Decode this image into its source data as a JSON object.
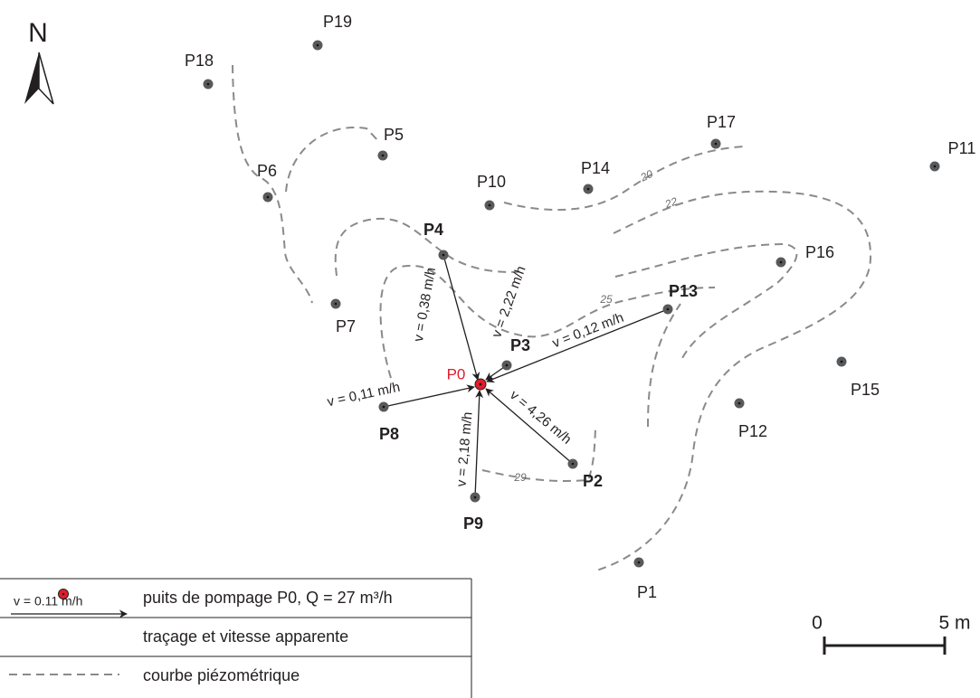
{
  "north": "N",
  "wells": [
    "P18",
    "P19",
    "P5",
    "P6",
    "P10",
    "P14",
    "P17",
    "P11",
    "P4",
    "P16",
    "P13",
    "P7",
    "P3",
    "P8",
    "P15",
    "P12",
    "P2",
    "P9",
    "P1"
  ],
  "pumping_well": "P0",
  "tracers": [
    {
      "from": "P4",
      "velocity": "v = 0,38 m/h"
    },
    {
      "from": "P3",
      "velocity": "v = 2,22 m/h"
    },
    {
      "from": "P13",
      "velocity": "v = 0,12 m/h"
    },
    {
      "from": "P8",
      "velocity": "v = 0,11 m/h"
    },
    {
      "from": "P2",
      "velocity": "v = 4,26 m/h"
    },
    {
      "from": "P9",
      "velocity": "v = 2,18 m/h"
    }
  ],
  "contour_labels": [
    "20",
    "22",
    "25",
    "29"
  ],
  "legend": {
    "pumping_well": "puits de pompage P0, Q = 27 m³/h",
    "tracer_sample": "v = 0.11 m/h",
    "tracer": "traçage et vitesse apparente",
    "contour": "courbe piézométrique"
  },
  "scale": {
    "start": "0",
    "end": "5 m"
  }
}
